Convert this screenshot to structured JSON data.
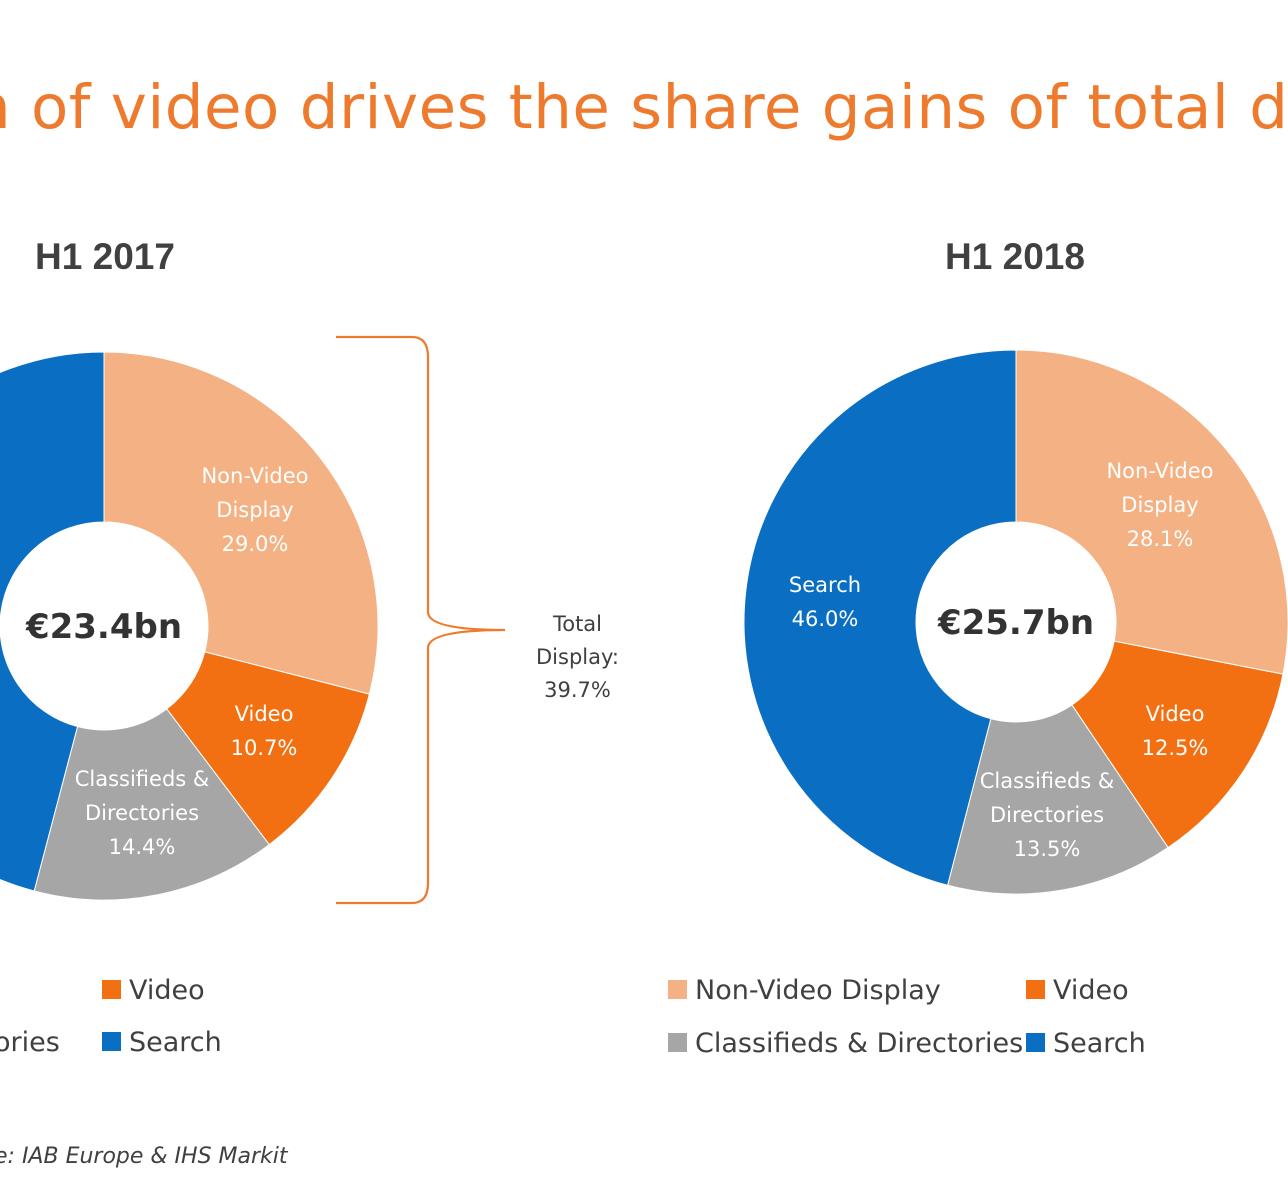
{
  "headline": "n of video drives the share gains of total d",
  "source": "e: IAB Europe & IHS Markit",
  "bracket": {
    "line1": "Total",
    "line2": "Display:",
    "line3": "39.7%"
  },
  "colors": {
    "Non-Video Display": "#f4b183",
    "Video": "#f26f12",
    "Classifieds & Directories": "#a6a6a6",
    "Search": "#0a6fc2"
  },
  "legend_2017": {
    "video": "Video",
    "classifieds": "ories",
    "search": "Search"
  },
  "legend_2018": {
    "nonvideo": "Non-Video Display",
    "video": "Video",
    "classifieds": "Classifieds & Directories",
    "search": "Search"
  },
  "chart_data": [
    {
      "type": "pie",
      "title": "H1 2017",
      "center_label": "€23.4bn",
      "slices": [
        {
          "name": "Non-Video Display",
          "value": 29.0,
          "label_lines": [
            "Non-Video",
            "Display",
            "29.0%"
          ]
        },
        {
          "name": "Video",
          "value": 10.7,
          "label_lines": [
            "Video",
            "10.7%"
          ]
        },
        {
          "name": "Classifieds & Directories",
          "value": 14.4,
          "label_lines": [
            "Classifieds &",
            "Directories",
            "14.4%"
          ]
        },
        {
          "name": "Search",
          "value": 45.9,
          "label_lines": []
        }
      ]
    },
    {
      "type": "pie",
      "title": "H1 2018",
      "center_label": "€25.7bn",
      "slices": [
        {
          "name": "Non-Video Display",
          "value": 28.1,
          "label_lines": [
            "Non-Video",
            "Display",
            "28.1%"
          ]
        },
        {
          "name": "Video",
          "value": 12.5,
          "label_lines": [
            "Video",
            "12.5%"
          ]
        },
        {
          "name": "Classifieds & Directories",
          "value": 13.5,
          "label_lines": [
            "Classifieds &",
            "Directories",
            "13.5%"
          ]
        },
        {
          "name": "Search",
          "value": 46.0,
          "label_lines": [
            "Search",
            "46.0%"
          ]
        }
      ]
    }
  ]
}
